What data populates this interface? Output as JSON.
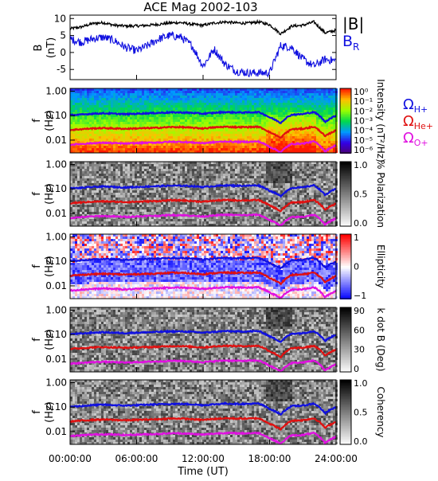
{
  "title": "ACE Mag 2002-103",
  "x_axis": {
    "label": "Time (UT)",
    "ticks": [
      "00:00:00",
      "06:00:00",
      "12:00:00",
      "18:00:00",
      "24:00:00"
    ],
    "tick_values_hours": [
      0,
      6,
      12,
      18,
      24
    ],
    "range_hours": [
      0,
      24
    ]
  },
  "colors": {
    "B_magnitude": "#000000",
    "B_R": "#1010e0",
    "proton": "#1010e0",
    "helium": "#e01010",
    "oxygen": "#e010e0"
  },
  "legend_top": {
    "abs_b": "|B|",
    "br_main": "B",
    "br_sub": "R"
  },
  "legend_ions": [
    {
      "main": "Ω",
      "sub": "H+",
      "color": "#1010e0"
    },
    {
      "main": "Ω",
      "sub": "He+",
      "color": "#e01010"
    },
    {
      "main": "Ω",
      "sub": "O+",
      "color": "#e010e0"
    }
  ],
  "freq_ticks": [
    "1.00",
    "0.10",
    "0.01"
  ],
  "panels": [
    {
      "id": "intensity",
      "colormap": "rainbow",
      "cbar_label": "Intensity (nT²/Hz)",
      "cbar_ticks": [
        "10⁰",
        "10⁻¹",
        "10⁻²",
        "10⁻³",
        "10⁻⁴",
        "10⁻⁵",
        "10⁻⁶"
      ]
    },
    {
      "id": "polarization",
      "colormap": "gray",
      "cbar_label": "% Polarization",
      "cbar_ticks": [
        "1.0",
        "0.5",
        "0.0"
      ]
    },
    {
      "id": "ellipticity",
      "colormap": "bwr",
      "cbar_label": "Ellipticity",
      "cbar_ticks": [
        "1",
        "0",
        "−1"
      ]
    },
    {
      "id": "kdotb",
      "colormap": "gray",
      "cbar_label": "k dot B (Deg)",
      "cbar_ticks": [
        "90",
        "60",
        "30",
        "0"
      ]
    },
    {
      "id": "coherency",
      "colormap": "gray",
      "cbar_label": "Coherency",
      "cbar_ticks": [
        "1.0",
        "0.5",
        "0.0"
      ]
    }
  ],
  "f_label": {
    "main": "f",
    "unit": "(Hz)"
  },
  "b_label": {
    "main": "B",
    "unit": "(nT)"
  },
  "chart_data": [
    {
      "type": "line",
      "panel": "B field",
      "title": "ACE Mag 2002-103",
      "ylabel": "B (nT)",
      "ylim": [
        -8,
        11
      ],
      "yticks": [
        10,
        5,
        0,
        -5
      ],
      "x_hours": [
        0,
        1,
        2,
        3,
        4,
        5,
        6,
        7,
        8,
        9,
        10,
        11,
        12,
        13,
        14,
        15,
        16,
        17,
        18,
        19,
        20,
        21,
        22,
        23,
        24
      ],
      "series": [
        {
          "name": "|B|",
          "values": [
            7.0,
            7.5,
            8.5,
            8.8,
            8.0,
            7.8,
            7.8,
            8.0,
            8.3,
            8.7,
            8.8,
            8.3,
            8.0,
            8.7,
            9.0,
            8.7,
            8.6,
            9.0,
            8.2,
            5.5,
            7.8,
            8.0,
            9.0,
            5.8,
            6.5
          ]
        },
        {
          "name": "B_R",
          "values": [
            4.0,
            3.0,
            4.0,
            4.5,
            3.5,
            1.5,
            0.5,
            2.0,
            4.0,
            5.0,
            4.5,
            2.0,
            -4.0,
            1.0,
            -3.5,
            -5.5,
            -6.0,
            -6.0,
            -6.0,
            2.0,
            1.5,
            -2.0,
            -4.0,
            -2.0,
            -2.5
          ]
        }
      ]
    },
    {
      "type": "line",
      "panel": "ion cyclotron frequencies (overplotted on all spectrograms)",
      "ylabel": "f (Hz)",
      "yscale": "log",
      "ylim": [
        0.003,
        1.3
      ],
      "x_hours": [
        0,
        1,
        2,
        3,
        4,
        5,
        6,
        7,
        8,
        9,
        10,
        11,
        12,
        13,
        14,
        15,
        16,
        17,
        18,
        19,
        20,
        21,
        22,
        23,
        24
      ],
      "series": [
        {
          "name": "Ω_H+",
          "values": [
            0.105,
            0.11,
            0.12,
            0.125,
            0.12,
            0.115,
            0.12,
            0.125,
            0.13,
            0.135,
            0.135,
            0.13,
            0.12,
            0.13,
            0.14,
            0.135,
            0.135,
            0.14,
            0.085,
            0.05,
            0.11,
            0.115,
            0.14,
            0.055,
            0.1
          ]
        },
        {
          "name": "Ω_He+",
          "values": [
            0.026,
            0.028,
            0.03,
            0.031,
            0.03,
            0.029,
            0.03,
            0.031,
            0.032,
            0.034,
            0.034,
            0.032,
            0.03,
            0.033,
            0.035,
            0.034,
            0.034,
            0.035,
            0.021,
            0.012,
            0.028,
            0.029,
            0.035,
            0.014,
            0.025
          ]
        },
        {
          "name": "Ω_O+",
          "values": [
            0.0065,
            0.007,
            0.0075,
            0.0078,
            0.0075,
            0.0072,
            0.0075,
            0.0078,
            0.008,
            0.0085,
            0.0085,
            0.008,
            0.0075,
            0.0082,
            0.0088,
            0.0085,
            0.0085,
            0.0088,
            0.0053,
            0.0031,
            0.007,
            0.0072,
            0.0088,
            0.0034,
            0.0062
          ]
        }
      ]
    }
  ]
}
